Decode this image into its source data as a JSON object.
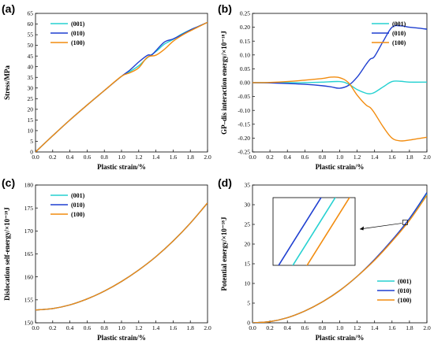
{
  "colors": {
    "s001": "#26d1d1",
    "s010": "#1f3fd0",
    "s100": "#f28c0f"
  },
  "chart_data": [
    {
      "panel_label": "(a)",
      "type": "line",
      "xlabel": "Plastic strain/%",
      "ylabel": "Stress/MPa",
      "xlim": [
        0,
        2.0
      ],
      "ylim": [
        0,
        65
      ],
      "xticks": [
        "0.0",
        "0.2",
        "0.4",
        "0.6",
        "0.8",
        "1.0",
        "1.2",
        "1.4",
        "1.6",
        "1.8",
        "2.0"
      ],
      "yticks": [
        "0",
        "5",
        "10",
        "15",
        "20",
        "25",
        "30",
        "35",
        "40",
        "45",
        "50",
        "55",
        "60",
        "65"
      ],
      "legend": "top-left",
      "series": [
        {
          "name": "(001)",
          "color_key": "s001",
          "x": [
            0,
            0.2,
            0.4,
            0.6,
            0.8,
            1.0,
            1.1,
            1.2,
            1.3,
            1.4,
            1.5,
            1.6,
            1.7,
            1.8,
            1.9,
            2.0
          ],
          "y": [
            0,
            7.6,
            15,
            22,
            28.8,
            35.5,
            37.8,
            40.4,
            44.2,
            47.1,
            50.6,
            52.8,
            55.3,
            57.3,
            59.0,
            60.8
          ]
        },
        {
          "name": "(010)",
          "color_key": "s010",
          "x": [
            0,
            0.2,
            0.4,
            0.6,
            0.8,
            1.0,
            1.1,
            1.2,
            1.3,
            1.35,
            1.4,
            1.5,
            1.6,
            1.7,
            1.8,
            1.9,
            2.0
          ],
          "y": [
            0,
            7.6,
            15,
            22,
            28.8,
            35.5,
            38.5,
            42.2,
            45.3,
            45.5,
            47.5,
            51.6,
            53.0,
            55.0,
            57.2,
            59.0,
            60.8
          ]
        },
        {
          "name": "(100)",
          "color_key": "s100",
          "x": [
            0,
            0.2,
            0.4,
            0.6,
            0.8,
            1.0,
            1.1,
            1.2,
            1.3,
            1.4,
            1.5,
            1.6,
            1.7,
            1.8,
            1.9,
            2.0
          ],
          "y": [
            0,
            7.6,
            15,
            22,
            28.8,
            35.5,
            37.2,
            39.5,
            44.4,
            45.4,
            48.2,
            51.9,
            54.6,
            56.8,
            58.8,
            60.8
          ]
        }
      ]
    },
    {
      "panel_label": "(b)",
      "type": "line",
      "xlabel": "Plastic strain/%",
      "ylabel": "GP–dis interaction energy/×10⁻¹⁸J",
      "xlim": [
        0,
        2.0
      ],
      "ylim": [
        -0.25,
        0.25
      ],
      "xticks": [
        "0.0",
        "0.2",
        "0.4",
        "0.6",
        "0.8",
        "1.0",
        "1.2",
        "1.4",
        "1.6",
        "1.8",
        "2.0"
      ],
      "yticks": [
        "0.25",
        "0.20",
        "0.15",
        "0.10",
        "0.05",
        "0.00",
        "-0.05",
        "-0.10",
        "-0.15",
        "-0.20",
        "-0.25"
      ],
      "legend": "top-right",
      "series": [
        {
          "name": "(001)",
          "color_key": "s001",
          "x": [
            0,
            0.2,
            0.4,
            0.6,
            0.8,
            1.0,
            1.1,
            1.2,
            1.3,
            1.35,
            1.4,
            1.5,
            1.6,
            1.7,
            1.8,
            2.0
          ],
          "y": [
            0,
            0,
            0,
            0,
            0.002,
            0.004,
            -0.005,
            -0.025,
            -0.038,
            -0.04,
            -0.035,
            -0.015,
            0.004,
            0.005,
            0.002,
            0.002
          ]
        },
        {
          "name": "(010)",
          "color_key": "s010",
          "x": [
            0,
            0.2,
            0.4,
            0.6,
            0.8,
            0.9,
            1.0,
            1.1,
            1.2,
            1.3,
            1.35,
            1.4,
            1.5,
            1.6,
            1.7,
            1.8,
            1.9,
            2.0
          ],
          "y": [
            0,
            -0.001,
            -0.003,
            -0.006,
            -0.011,
            -0.015,
            -0.02,
            -0.01,
            0.02,
            0.065,
            0.085,
            0.095,
            0.15,
            0.2,
            0.205,
            0.2,
            0.197,
            0.193
          ]
        },
        {
          "name": "(100)",
          "color_key": "s100",
          "x": [
            0,
            0.2,
            0.4,
            0.6,
            0.8,
            0.9,
            1.0,
            1.1,
            1.2,
            1.3,
            1.35,
            1.4,
            1.5,
            1.6,
            1.7,
            1.8,
            1.9,
            2.0
          ],
          "y": [
            0,
            0.001,
            0.004,
            0.009,
            0.015,
            0.02,
            0.018,
            0.0,
            -0.045,
            -0.08,
            -0.09,
            -0.11,
            -0.16,
            -0.2,
            -0.21,
            -0.207,
            -0.202,
            -0.197
          ]
        }
      ]
    },
    {
      "panel_label": "(c)",
      "type": "line",
      "xlabel": "Plastic strain/%",
      "ylabel": "Dislocation self-energy/×10⁻¹⁸J",
      "xlim": [
        0,
        2.0
      ],
      "ylim": [
        150,
        180
      ],
      "xticks": [
        "0.0",
        "0.2",
        "0.4",
        "0.6",
        "0.8",
        "1.0",
        "1.2",
        "1.4",
        "1.6",
        "1.8",
        "2.0"
      ],
      "yticks": [
        "150",
        "155",
        "160",
        "165",
        "170",
        "175",
        "180"
      ],
      "legend": "top-left",
      "series": [
        {
          "name": "(001)",
          "color_key": "s001",
          "x": [
            0,
            0.2,
            0.4,
            0.6,
            0.8,
            1.0,
            1.2,
            1.4,
            1.6,
            1.8,
            2.0
          ],
          "y": [
            152.8,
            153.1,
            153.9,
            155.2,
            156.9,
            159.0,
            161.5,
            164.4,
            167.8,
            171.7,
            176.1
          ]
        },
        {
          "name": "(010)",
          "color_key": "s010",
          "x": [
            0,
            0.2,
            0.4,
            0.6,
            0.8,
            1.0,
            1.2,
            1.4,
            1.6,
            1.8,
            2.0
          ],
          "y": [
            152.8,
            153.1,
            153.9,
            155.2,
            156.9,
            159.0,
            161.5,
            164.4,
            167.8,
            171.7,
            176.1
          ]
        },
        {
          "name": "(100)",
          "color_key": "s100",
          "x": [
            0,
            0.2,
            0.4,
            0.6,
            0.8,
            1.0,
            1.2,
            1.4,
            1.6,
            1.8,
            2.0
          ],
          "y": [
            152.8,
            153.1,
            153.9,
            155.2,
            156.9,
            159.0,
            161.5,
            164.4,
            167.8,
            171.7,
            176.1
          ]
        }
      ]
    },
    {
      "panel_label": "(d)",
      "type": "line",
      "xlabel": "Plastic strain/%",
      "ylabel": "Potential energy/×10⁻¹⁸J",
      "xlim": [
        0,
        2.0
      ],
      "ylim": [
        0,
        35
      ],
      "xticks": [
        "0.0",
        "0.2",
        "0.4",
        "0.6",
        "0.8",
        "1.0",
        "1.2",
        "1.4",
        "1.6",
        "1.8",
        "2.0"
      ],
      "yticks": [
        "0",
        "5",
        "10",
        "15",
        "20",
        "25",
        "30",
        "35"
      ],
      "legend": "bottom-right",
      "inset": "zoomed view near x=1.75, y=25.5",
      "series": [
        {
          "name": "(001)",
          "color_key": "s001",
          "x": [
            0,
            0.2,
            0.4,
            0.6,
            0.8,
            1.0,
            1.2,
            1.4,
            1.6,
            1.8,
            2.0
          ],
          "y": [
            0,
            0.3,
            1.3,
            3.0,
            5.3,
            8.2,
            11.8,
            16.0,
            20.8,
            26.2,
            32.7
          ]
        },
        {
          "name": "(010)",
          "color_key": "s010",
          "x": [
            0,
            0.2,
            0.4,
            0.6,
            0.8,
            1.0,
            1.2,
            1.4,
            1.6,
            1.8,
            2.0
          ],
          "y": [
            0,
            0.3,
            1.3,
            3.0,
            5.3,
            8.2,
            11.8,
            16.1,
            21.0,
            26.5,
            33.1
          ]
        },
        {
          "name": "(100)",
          "color_key": "s100",
          "x": [
            0,
            0.2,
            0.4,
            0.6,
            0.8,
            1.0,
            1.2,
            1.4,
            1.6,
            1.8,
            2.0
          ],
          "y": [
            0,
            0.3,
            1.3,
            3.0,
            5.3,
            8.2,
            11.8,
            15.9,
            20.7,
            26.0,
            32.4
          ]
        }
      ]
    }
  ]
}
